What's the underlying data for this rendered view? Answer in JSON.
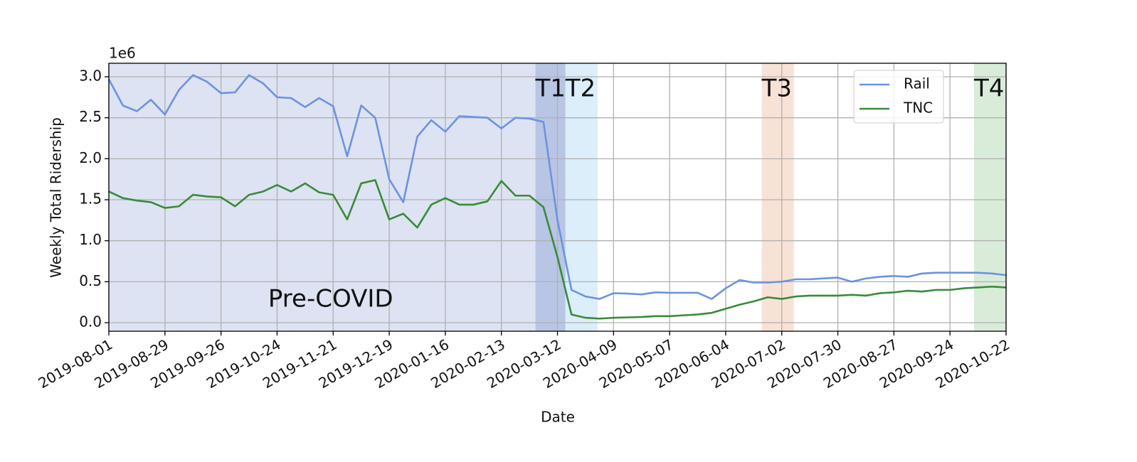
{
  "chart_data": {
    "type": "line",
    "x_label": "Date",
    "y_label": "Weekly Total Ridership",
    "y_offset_label": "1e6",
    "x": [
      "2019-08-01",
      "2019-08-08",
      "2019-08-15",
      "2019-08-22",
      "2019-08-29",
      "2019-09-05",
      "2019-09-12",
      "2019-09-19",
      "2019-09-26",
      "2019-10-03",
      "2019-10-10",
      "2019-10-17",
      "2019-10-24",
      "2019-10-31",
      "2019-11-07",
      "2019-11-14",
      "2019-11-21",
      "2019-11-28",
      "2019-12-05",
      "2019-12-12",
      "2019-12-19",
      "2019-12-26",
      "2020-01-02",
      "2020-01-09",
      "2020-01-16",
      "2020-01-23",
      "2020-01-30",
      "2020-02-06",
      "2020-02-13",
      "2020-02-20",
      "2020-02-27",
      "2020-03-05",
      "2020-03-12",
      "2020-03-19",
      "2020-03-26",
      "2020-04-02",
      "2020-04-09",
      "2020-04-16",
      "2020-04-23",
      "2020-04-30",
      "2020-05-07",
      "2020-05-14",
      "2020-05-21",
      "2020-05-28",
      "2020-06-04",
      "2020-06-11",
      "2020-06-18",
      "2020-06-25",
      "2020-07-02",
      "2020-07-09",
      "2020-07-16",
      "2020-07-23",
      "2020-07-30",
      "2020-08-06",
      "2020-08-13",
      "2020-08-20",
      "2020-08-27",
      "2020-09-03",
      "2020-09-10",
      "2020-09-17",
      "2020-09-24",
      "2020-10-01",
      "2020-10-08",
      "2020-10-15",
      "2020-10-22"
    ],
    "series": [
      {
        "name": "Rail",
        "color": "#6d92e0",
        "values": [
          2.97,
          2.65,
          2.58,
          2.72,
          2.54,
          2.84,
          3.02,
          2.94,
          2.8,
          2.81,
          3.02,
          2.92,
          2.75,
          2.74,
          2.63,
          2.74,
          2.64,
          2.03,
          2.65,
          2.5,
          1.75,
          1.47,
          2.27,
          2.47,
          2.33,
          2.52,
          2.51,
          2.5,
          2.37,
          2.5,
          2.49,
          2.45,
          1.25,
          0.4,
          0.32,
          0.29,
          0.36,
          0.355,
          0.345,
          0.37,
          0.365,
          0.365,
          0.365,
          0.29,
          0.42,
          0.52,
          0.49,
          0.49,
          0.5,
          0.53,
          0.53,
          0.54,
          0.55,
          0.5,
          0.54,
          0.56,
          0.57,
          0.56,
          0.6,
          0.61,
          0.61,
          0.61,
          0.61,
          0.6,
          0.58
        ]
      },
      {
        "name": "TNC",
        "color": "#3a8a3a",
        "values": [
          1.6,
          1.52,
          1.49,
          1.47,
          1.4,
          1.42,
          1.56,
          1.54,
          1.53,
          1.42,
          1.56,
          1.6,
          1.68,
          1.6,
          1.7,
          1.59,
          1.56,
          1.26,
          1.7,
          1.74,
          1.26,
          1.33,
          1.16,
          1.44,
          1.52,
          1.44,
          1.44,
          1.48,
          1.73,
          1.55,
          1.55,
          1.41,
          0.8,
          0.1,
          0.06,
          0.05,
          0.06,
          0.065,
          0.07,
          0.08,
          0.08,
          0.09,
          0.1,
          0.12,
          0.17,
          0.22,
          0.26,
          0.31,
          0.29,
          0.32,
          0.33,
          0.33,
          0.33,
          0.34,
          0.33,
          0.36,
          0.37,
          0.39,
          0.38,
          0.4,
          0.4,
          0.42,
          0.43,
          0.44,
          0.43
        ]
      }
    ],
    "spans": [
      {
        "label": "Pre-COVID",
        "start": "2019-08-01",
        "end": "2020-03-01",
        "color": "#dde3f2"
      },
      {
        "label": "T1",
        "start": "2020-03-01",
        "end": "2020-03-16",
        "color": "#b9c5e5"
      },
      {
        "label": "T2",
        "start": "2020-03-16",
        "end": "2020-04-01",
        "color": "#dbeefa"
      },
      {
        "label": "T3",
        "start": "2020-06-22",
        "end": "2020-07-08",
        "color": "#f8e2d6"
      },
      {
        "label": "T4",
        "start": "2020-10-06",
        "end": "2020-10-22",
        "color": "#d9ecd9"
      }
    ],
    "xlim": [
      "2019-08-01",
      "2020-10-22"
    ],
    "xticks": [
      "2019-08-01",
      "2019-08-29",
      "2019-09-26",
      "2019-10-24",
      "2019-11-21",
      "2019-12-19",
      "2020-01-16",
      "2020-02-13",
      "2020-03-12",
      "2020-04-09",
      "2020-05-07",
      "2020-06-04",
      "2020-07-02",
      "2020-07-30",
      "2020-08-27",
      "2020-09-24",
      "2020-10-22"
    ],
    "ylim": [
      -0.104,
      3.165
    ],
    "yticks": [
      {
        "value": 0,
        "label": "0.0"
      },
      0.5,
      {
        "value": 1,
        "label": "1.0"
      },
      1.5,
      {
        "value": 2,
        "label": "2.0"
      },
      2.5,
      {
        "value": 3,
        "label": "3.0"
      }
    ],
    "grid": true,
    "legend": "upper right"
  }
}
